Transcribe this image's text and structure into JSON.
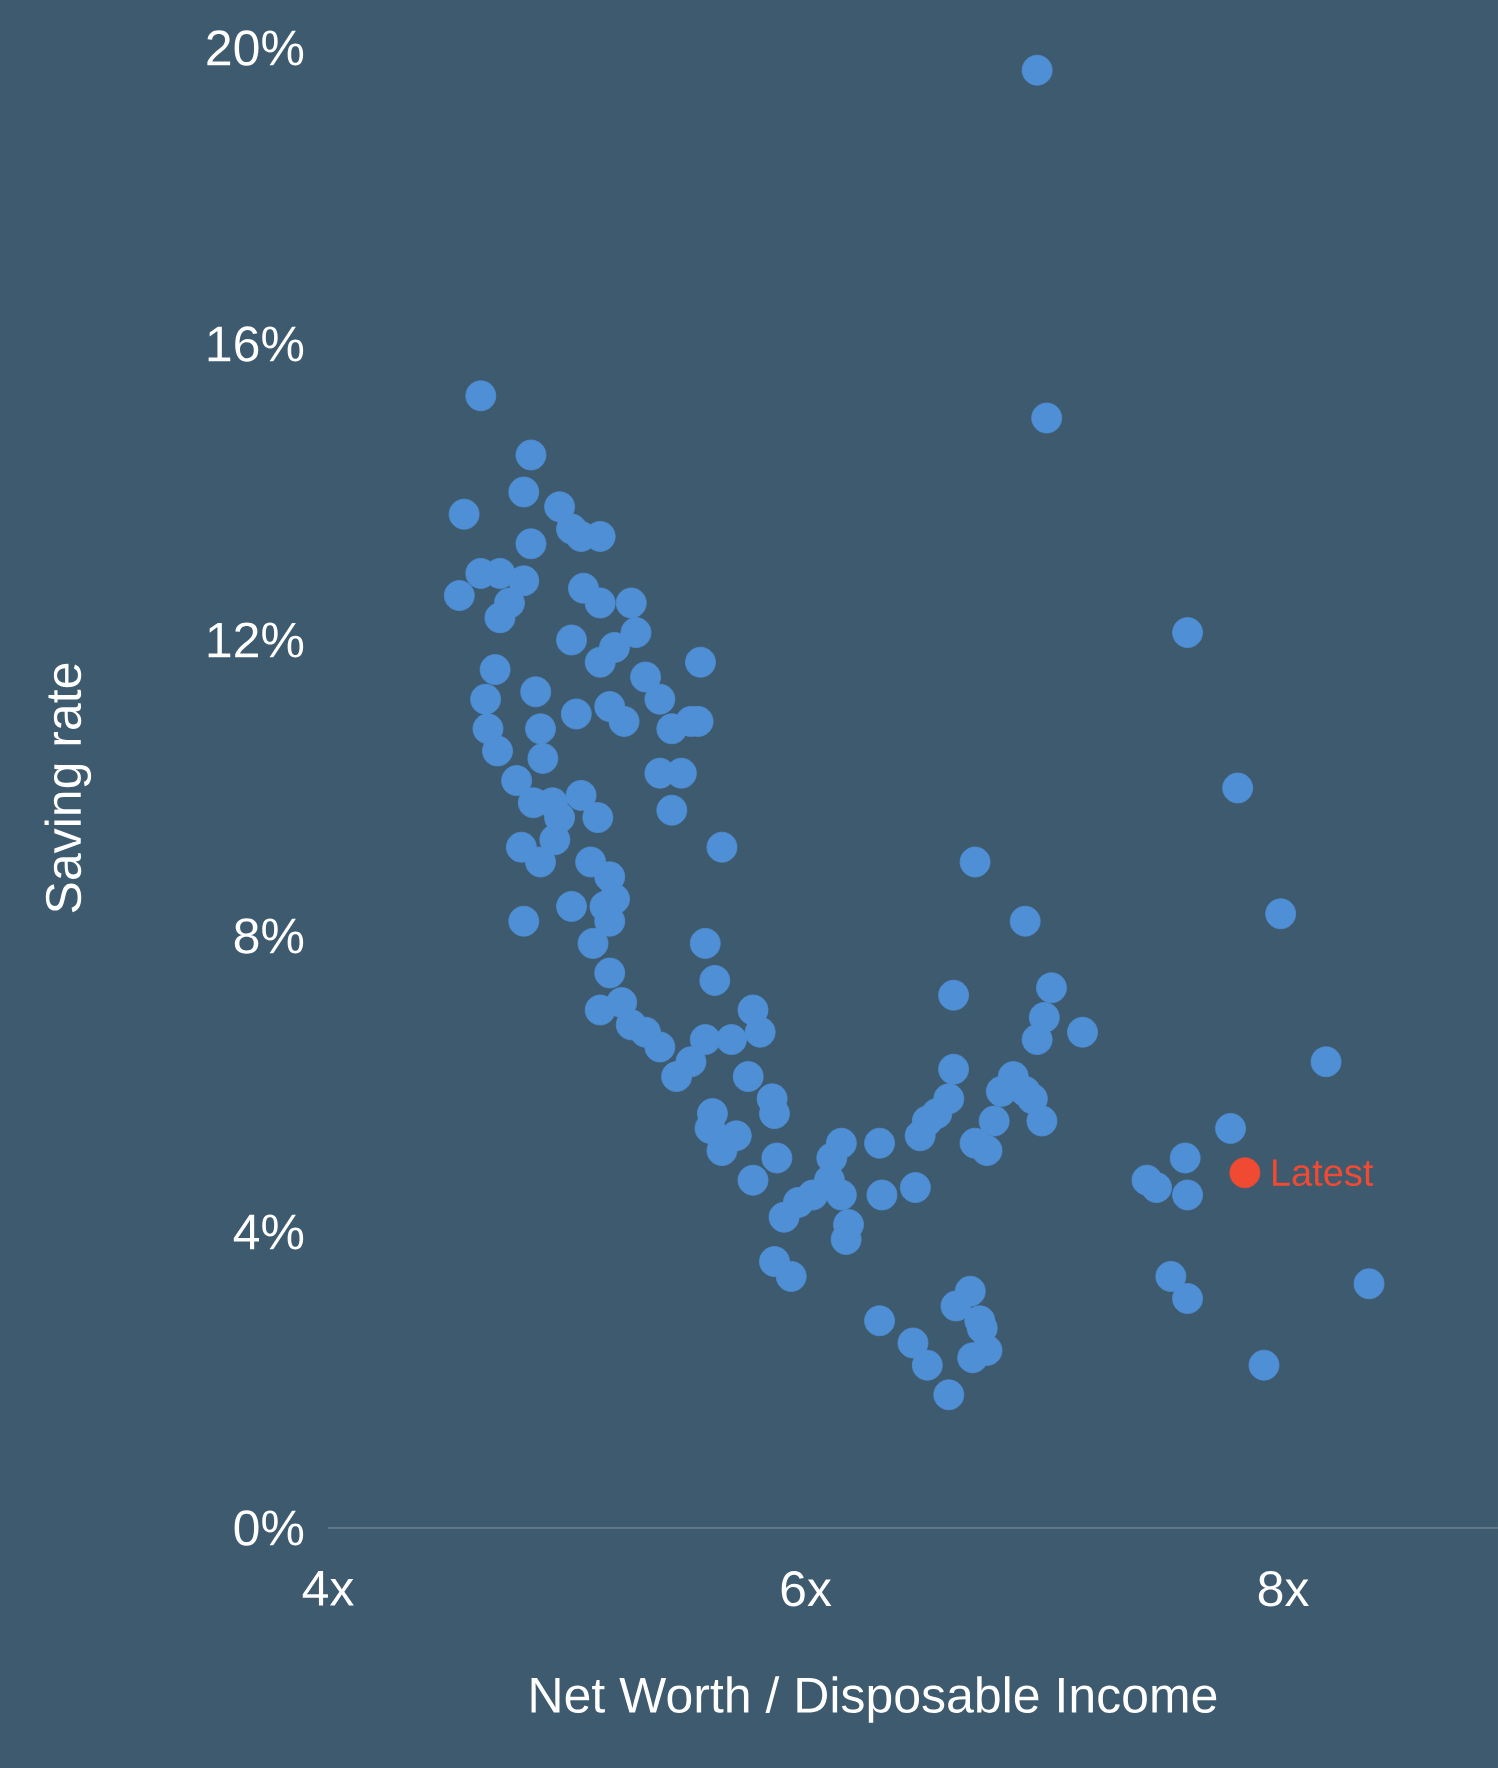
{
  "chart_data": {
    "type": "scatter",
    "xlabel": "Net Worth / Disposable Income",
    "ylabel": "Saving rate",
    "xlim": [
      4,
      8.9
    ],
    "ylim": [
      0,
      20
    ],
    "xticks": [
      {
        "value": 4,
        "label": "4x"
      },
      {
        "value": 6,
        "label": "6x"
      },
      {
        "value": 8,
        "label": "8x"
      }
    ],
    "yticks": [
      {
        "value": 0,
        "label": "0%"
      },
      {
        "value": 4,
        "label": "4%"
      },
      {
        "value": 8,
        "label": "8%"
      },
      {
        "value": 12,
        "label": "12%"
      },
      {
        "value": 16,
        "label": "16%"
      },
      {
        "value": 20,
        "label": "20%"
      }
    ],
    "grid": false,
    "legend": false,
    "series": [
      {
        "color": "#4f8fd6",
        "x": [
          6.97,
          7.01,
          7.6,
          7.81,
          7.99,
          8.18,
          7.78,
          8.36,
          7.92,
          7.43,
          7.47,
          7.59,
          7.6,
          7.53,
          7.6,
          6.71,
          6.92,
          7.03,
          7.0,
          7.16,
          6.97,
          6.87,
          6.92,
          6.95,
          6.99,
          6.62,
          6.62,
          6.6,
          6.55,
          6.51,
          6.48,
          6.71,
          6.76,
          6.79,
          6.82,
          6.31,
          6.45,
          6.51,
          6.6,
          6.63,
          6.69,
          6.7,
          6.74,
          6.76,
          6.73,
          6.31,
          6.32,
          6.46,
          6.15,
          6.11,
          6.1,
          6.15,
          6.18,
          6.17,
          6.03,
          5.97,
          5.91,
          5.94,
          5.87,
          5.78,
          5.88,
          5.86,
          5.87,
          5.71,
          5.65,
          5.6,
          5.61,
          5.76,
          5.81,
          5.78,
          5.69,
          5.58,
          5.52,
          5.46,
          5.39,
          5.33,
          5.27,
          5.23,
          5.18,
          5.62,
          5.58,
          5.65,
          5.14,
          5.18,
          5.18,
          5.2,
          5.16,
          5.11,
          5.02,
          5.1,
          5.13,
          5.06,
          4.97,
          4.95,
          4.89,
          4.82,
          4.81,
          4.86,
          4.79,
          4.71,
          4.67,
          4.66,
          4.7,
          4.72,
          4.76,
          4.82,
          4.72,
          4.64,
          4.55,
          4.57,
          4.64,
          4.85,
          4.82,
          4.85,
          4.97,
          5.02,
          5.06,
          5.14,
          5.07,
          5.14,
          5.02,
          5.14,
          5.2,
          5.27,
          5.29,
          5.33,
          5.39,
          5.44,
          5.52,
          5.56,
          5.55,
          5.48,
          5.39,
          5.44,
          5.24,
          5.18,
          5.04,
          4.87,
          4.89,
          4.9,
          4.94
        ],
        "values": [
          19.7,
          15.0,
          12.1,
          10.0,
          8.3,
          6.3,
          5.4,
          3.3,
          2.2,
          4.7,
          4.6,
          5.0,
          4.5,
          3.4,
          3.1,
          9.0,
          8.2,
          7.3,
          6.9,
          6.7,
          6.6,
          6.1,
          5.9,
          5.8,
          5.5,
          7.2,
          6.2,
          5.8,
          5.6,
          5.5,
          5.3,
          5.2,
          5.1,
          5.5,
          5.9,
          2.8,
          2.5,
          2.2,
          1.8,
          3.0,
          3.2,
          2.3,
          2.7,
          2.4,
          2.8,
          5.2,
          4.5,
          4.6,
          5.2,
          5.0,
          4.7,
          4.5,
          4.1,
          3.9,
          4.5,
          4.4,
          4.2,
          3.4,
          3.6,
          4.7,
          5.0,
          5.8,
          5.6,
          5.3,
          5.1,
          5.4,
          5.6,
          6.1,
          6.7,
          7.0,
          6.6,
          6.6,
          6.3,
          6.1,
          6.5,
          6.7,
          6.8,
          7.1,
          7.5,
          7.4,
          7.9,
          9.2,
          7.0,
          8.2,
          8.8,
          8.5,
          8.4,
          7.9,
          8.4,
          9.0,
          9.6,
          9.9,
          9.6,
          9.3,
          9.0,
          8.2,
          9.2,
          9.8,
          10.1,
          10.5,
          10.8,
          11.2,
          11.6,
          12.3,
          12.5,
          12.8,
          12.9,
          12.9,
          12.6,
          13.7,
          15.3,
          14.5,
          14.0,
          13.3,
          13.8,
          13.5,
          13.4,
          13.4,
          12.7,
          12.5,
          12.0,
          11.7,
          11.9,
          12.5,
          12.1,
          11.5,
          11.2,
          10.8,
          10.9,
          11.7,
          10.9,
          10.2,
          10.2,
          9.7,
          10.9,
          11.1,
          11.0,
          11.3,
          10.8,
          10.4,
          9.8
        ]
      },
      {
        "name": "Latest",
        "color": "#f04a32",
        "x": [
          7.84
        ],
        "values": [
          4.8
        ]
      }
    ]
  }
}
